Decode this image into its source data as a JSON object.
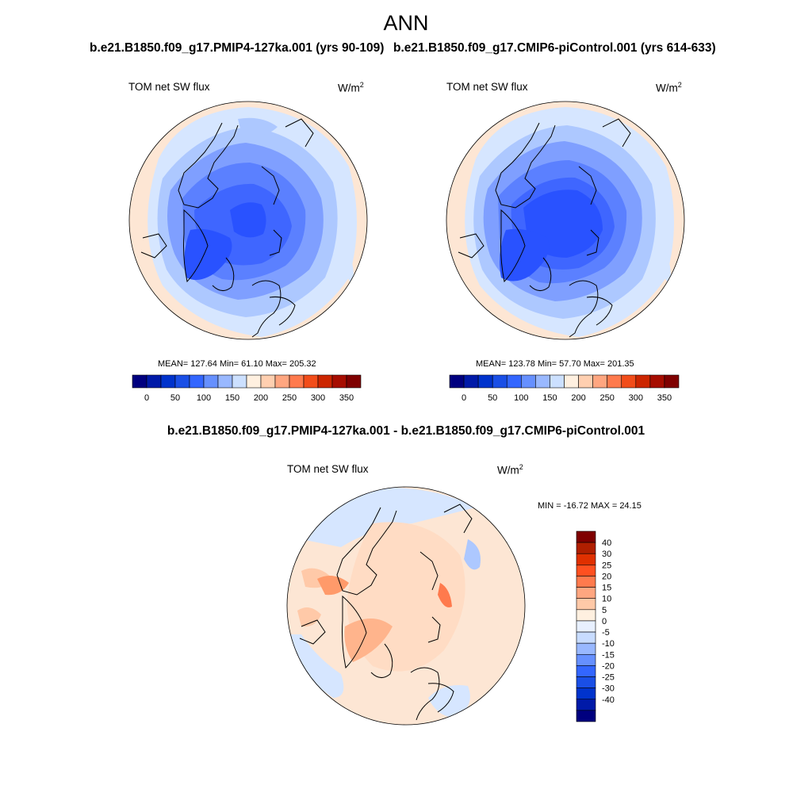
{
  "page_title": "ANN",
  "panels": {
    "case1": {
      "title": "b.e21.B1850.f09_g17.PMIP4-127ka.001 (yrs 90-109)",
      "variable": "TOM net SW flux",
      "units_base": "W/m",
      "units_exp": "2",
      "stats": "MEAN= 127.64  Min=  61.10  Max= 205.32"
    },
    "case2": {
      "title": "b.e21.B1850.f09_g17.CMIP6-piControl.001 (yrs 614-633)",
      "variable": "TOM net SW flux",
      "units_base": "W/m",
      "units_exp": "2",
      "stats": "MEAN= 123.78  Min=  57.70  Max= 201.35"
    },
    "diff": {
      "title": "b.e21.B1850.f09_g17.PMIP4-127ka.001 - b.e21.B1850.f09_g17.CMIP6-piControl.001",
      "variable": "TOM net SW flux",
      "units_base": "W/m",
      "units_exp": "2",
      "stats": "MIN = -16.72 MAX =  24.15"
    }
  },
  "chart_data": [
    {
      "type": "heatmap",
      "title": "b.e21.B1850.f09_g17.PMIP4-127ka.001 (yrs 90-109)",
      "projection": "north-polar-stereographic",
      "variable": "TOM net SW flux",
      "mean": 127.64,
      "min": 61.1,
      "max": 205.32,
      "colorbar": {
        "orientation": "horizontal",
        "levels": [
          0,
          25,
          50,
          75,
          100,
          125,
          150,
          175,
          200,
          225,
          250,
          275,
          300,
          325,
          350
        ],
        "tick_labels": [
          "0",
          "50",
          "100",
          "150",
          "200",
          "250",
          "300",
          "350"
        ],
        "colors": [
          "#00007f",
          "#001aa8",
          "#0033cc",
          "#1a4fe6",
          "#3366ff",
          "#6690ff",
          "#99b8ff",
          "#cce0ff",
          "#fff0e0",
          "#ffcfb0",
          "#ffa680",
          "#ff7a4d",
          "#f24d1a",
          "#cc2600",
          "#a60d00",
          "#7f0000"
        ]
      }
    },
    {
      "type": "heatmap",
      "title": "b.e21.B1850.f09_g17.CMIP6-piControl.001 (yrs 614-633)",
      "projection": "north-polar-stereographic",
      "variable": "TOM net SW flux",
      "mean": 123.78,
      "min": 57.7,
      "max": 201.35,
      "colorbar": {
        "orientation": "horizontal",
        "levels": [
          0,
          25,
          50,
          75,
          100,
          125,
          150,
          175,
          200,
          225,
          250,
          275,
          300,
          325,
          350
        ],
        "tick_labels": [
          "0",
          "50",
          "100",
          "150",
          "200",
          "250",
          "300",
          "350"
        ],
        "colors": [
          "#00007f",
          "#001aa8",
          "#0033cc",
          "#1a4fe6",
          "#3366ff",
          "#6690ff",
          "#99b8ff",
          "#cce0ff",
          "#fff0e0",
          "#ffcfb0",
          "#ffa680",
          "#ff7a4d",
          "#f24d1a",
          "#cc2600",
          "#a60d00",
          "#7f0000"
        ]
      }
    },
    {
      "type": "heatmap",
      "title": "b.e21.B1850.f09_g17.PMIP4-127ka.001 - b.e21.B1850.f09_g17.CMIP6-piControl.001",
      "projection": "north-polar-stereographic",
      "variable": "TOM net SW flux",
      "min": -16.72,
      "max": 24.15,
      "colorbar": {
        "orientation": "vertical",
        "levels": [
          40,
          30,
          25,
          20,
          15,
          10,
          5,
          0,
          -5,
          -10,
          -15,
          -20,
          -25,
          -30,
          -40
        ],
        "tick_labels": [
          "40",
          "30",
          "25",
          "20",
          "15",
          "10",
          "5",
          "0",
          "-5",
          "-10",
          "-15",
          "-20",
          "-25",
          "-30",
          "-40"
        ],
        "colors": [
          "#7f0000",
          "#b01f00",
          "#e03000",
          "#ff5020",
          "#ff7a4d",
          "#ffa680",
          "#ffc9a8",
          "#fff0e0",
          "#e8f0ff",
          "#c8dcff",
          "#99b8ff",
          "#6690ff",
          "#3366ff",
          "#1a4fe6",
          "#0033cc",
          "#001aa8",
          "#00007f"
        ]
      }
    }
  ]
}
